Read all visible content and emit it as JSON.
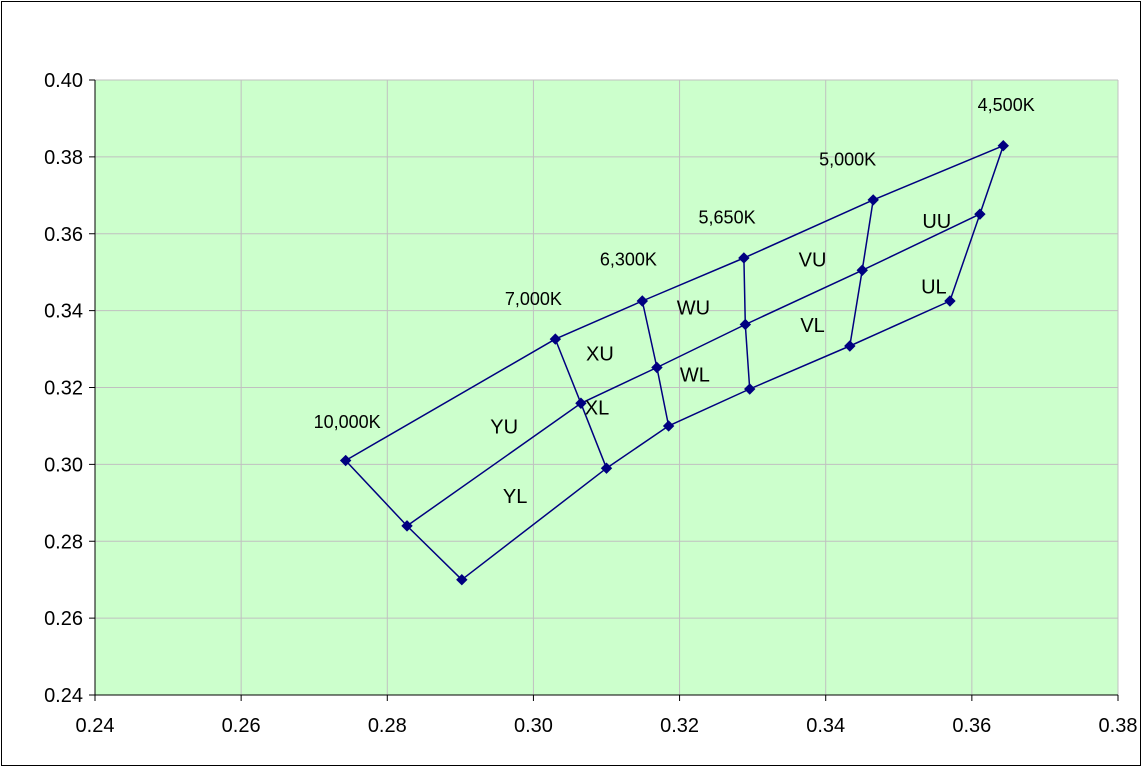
{
  "chart_data": {
    "type": "scatter",
    "title": "",
    "xlabel": "",
    "ylabel": "",
    "xlim": [
      0.24,
      0.38
    ],
    "ylim": [
      0.24,
      0.4
    ],
    "xticks": [
      0.24,
      0.26,
      0.28,
      0.3,
      0.32,
      0.34,
      0.36,
      0.38
    ],
    "yticks": [
      0.24,
      0.26,
      0.28,
      0.3,
      0.32,
      0.34,
      0.36,
      0.38,
      0.4
    ],
    "xtick_labels": [
      "0.24",
      "0.26",
      "0.28",
      "0.30",
      "0.32",
      "0.34",
      "0.36",
      "0.38"
    ],
    "ytick_labels": [
      "0.24",
      "0.26",
      "0.28",
      "0.30",
      "0.32",
      "0.34",
      "0.36",
      "0.38",
      "0.40"
    ],
    "grid": true,
    "legend": "none",
    "colors": {
      "plot_background": "#ccffcc",
      "series": "#000080",
      "grid": "#c0c0c0"
    },
    "points": {
      "p10000_top": [
        0.2743,
        0.301
      ],
      "p10000_mid": [
        0.2827,
        0.284
      ],
      "p10000_bot": [
        0.2902,
        0.27
      ],
      "p7000_top": [
        0.303,
        0.3326
      ],
      "p7000_mid": [
        0.3065,
        0.3159
      ],
      "p7000_bot": [
        0.31,
        0.299
      ],
      "p6300_top": [
        0.3149,
        0.3425
      ],
      "p6300_mid": [
        0.3169,
        0.3252
      ],
      "p6300_bot": [
        0.3185,
        0.31
      ],
      "p5650_top": [
        0.3288,
        0.3537
      ],
      "p5650_mid": [
        0.329,
        0.3364
      ],
      "p5650_bot": [
        0.3296,
        0.3196
      ],
      "p5000_top": [
        0.3465,
        0.3688
      ],
      "p5000_mid": [
        0.345,
        0.3505
      ],
      "p5000_bot": [
        0.3433,
        0.3308
      ],
      "p4500_top": [
        0.3643,
        0.3829
      ],
      "p4500_mid": [
        0.3611,
        0.3651
      ],
      "p4500_bot": [
        0.357,
        0.3425
      ]
    },
    "lines": [
      [
        "p10000_top",
        "p7000_top",
        "p6300_top",
        "p5650_top",
        "p5000_top",
        "p4500_top"
      ],
      [
        "p10000_mid",
        "p7000_mid",
        "p6300_mid",
        "p5650_mid",
        "p5000_mid",
        "p4500_mid"
      ],
      [
        "p10000_bot",
        "p7000_bot",
        "p6300_bot",
        "p5650_bot",
        "p5000_bot",
        "p4500_bot"
      ],
      [
        "p10000_top",
        "p10000_mid",
        "p10000_bot"
      ],
      [
        "p7000_top",
        "p7000_mid",
        "p7000_bot"
      ],
      [
        "p6300_top",
        "p6300_mid",
        "p6300_bot"
      ],
      [
        "p5650_top",
        "p5650_mid",
        "p5650_bot"
      ],
      [
        "p5000_top",
        "p5000_mid",
        "p5000_bot"
      ],
      [
        "p4500_top",
        "p4500_mid",
        "p4500_bot"
      ]
    ],
    "cct_labels": [
      {
        "text": "10,000K",
        "x": 0.2745,
        "y": 0.3095
      },
      {
        "text": "7,000K",
        "x": 0.3,
        "y": 0.3415
      },
      {
        "text": "6,300K",
        "x": 0.313,
        "y": 0.3517
      },
      {
        "text": "5,650K",
        "x": 0.3265,
        "y": 0.3627
      },
      {
        "text": "5,000K",
        "x": 0.343,
        "y": 0.3778
      },
      {
        "text": "4,500K",
        "x": 0.3647,
        "y": 0.392
      }
    ],
    "region_labels": [
      {
        "text": "YU",
        "x": 0.296,
        "y": 0.308
      },
      {
        "text": "YL",
        "x": 0.2975,
        "y": 0.29
      },
      {
        "text": "XU",
        "x": 0.3091,
        "y": 0.327
      },
      {
        "text": "XL",
        "x": 0.3087,
        "y": 0.313
      },
      {
        "text": "WU",
        "x": 0.3219,
        "y": 0.339
      },
      {
        "text": "WL",
        "x": 0.3221,
        "y": 0.3215
      },
      {
        "text": "VU",
        "x": 0.3382,
        "y": 0.3515
      },
      {
        "text": "VL",
        "x": 0.3382,
        "y": 0.3345
      },
      {
        "text": "UU",
        "x": 0.3552,
        "y": 0.3615
      },
      {
        "text": "UL",
        "x": 0.3548,
        "y": 0.3445
      }
    ]
  }
}
